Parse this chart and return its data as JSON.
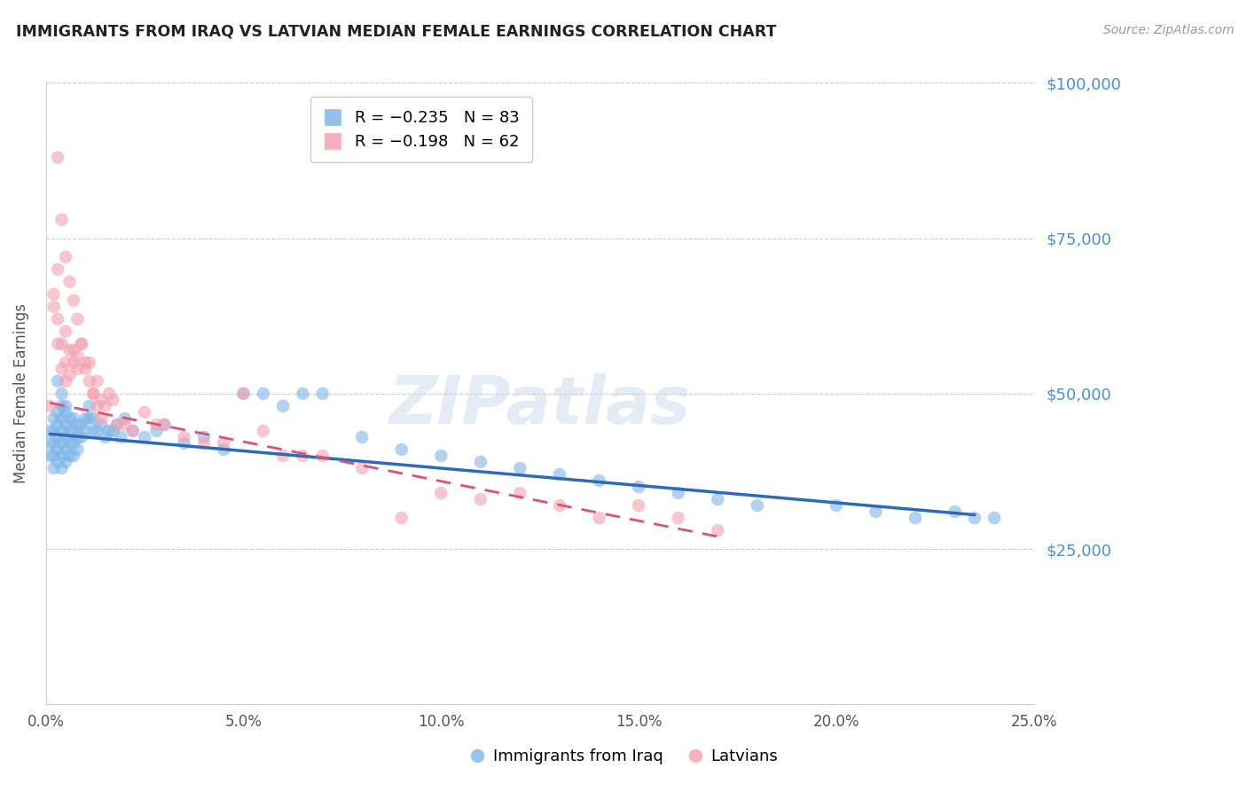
{
  "title": "IMMIGRANTS FROM IRAQ VS LATVIAN MEDIAN FEMALE EARNINGS CORRELATION CHART",
  "source": "Source: ZipAtlas.com",
  "ylabel": "Median Female Earnings",
  "y_ticks": [
    0,
    25000,
    50000,
    75000,
    100000
  ],
  "y_tick_labels": [
    "",
    "$25,000",
    "$50,000",
    "$75,000",
    "$100,000"
  ],
  "x_min": 0.0,
  "x_max": 0.25,
  "y_min": 0,
  "y_max": 100000,
  "color_iraq": "#7EB5E8",
  "color_latvians": "#F4A0B0",
  "color_iraq_line": "#2B6CB8",
  "color_latvians_line": "#E05070",
  "iraq_x": [
    0.001,
    0.001,
    0.001,
    0.002,
    0.002,
    0.002,
    0.002,
    0.002,
    0.003,
    0.003,
    0.003,
    0.003,
    0.003,
    0.004,
    0.004,
    0.004,
    0.004,
    0.004,
    0.004,
    0.005,
    0.005,
    0.005,
    0.005,
    0.005,
    0.006,
    0.006,
    0.006,
    0.006,
    0.007,
    0.007,
    0.007,
    0.007,
    0.008,
    0.008,
    0.008,
    0.009,
    0.009,
    0.01,
    0.01,
    0.011,
    0.011,
    0.012,
    0.012,
    0.013,
    0.014,
    0.015,
    0.016,
    0.017,
    0.018,
    0.019,
    0.02,
    0.022,
    0.025,
    0.028,
    0.03,
    0.035,
    0.04,
    0.045,
    0.05,
    0.055,
    0.06,
    0.065,
    0.07,
    0.08,
    0.09,
    0.1,
    0.11,
    0.12,
    0.13,
    0.14,
    0.15,
    0.16,
    0.17,
    0.18,
    0.2,
    0.21,
    0.22,
    0.23,
    0.235,
    0.24,
    0.003,
    0.004,
    0.005
  ],
  "iraq_y": [
    44000,
    42000,
    40000,
    46000,
    44000,
    42000,
    40000,
    38000,
    47000,
    45000,
    43000,
    41000,
    39000,
    48000,
    46000,
    44000,
    42000,
    40000,
    38000,
    47000,
    45000,
    43000,
    41000,
    39000,
    46000,
    44000,
    42000,
    40000,
    46000,
    44000,
    42000,
    40000,
    45000,
    43000,
    41000,
    45000,
    43000,
    46000,
    44000,
    48000,
    46000,
    46000,
    44000,
    44000,
    45000,
    43000,
    44000,
    44000,
    45000,
    43000,
    46000,
    44000,
    43000,
    44000,
    45000,
    42000,
    43000,
    41000,
    50000,
    50000,
    48000,
    50000,
    50000,
    43000,
    41000,
    40000,
    39000,
    38000,
    37000,
    36000,
    35000,
    34000,
    33000,
    32000,
    32000,
    31000,
    30000,
    31000,
    30000,
    30000,
    52000,
    50000,
    48000
  ],
  "latvians_x": [
    0.001,
    0.002,
    0.002,
    0.003,
    0.003,
    0.003,
    0.004,
    0.004,
    0.005,
    0.005,
    0.005,
    0.006,
    0.006,
    0.007,
    0.007,
    0.008,
    0.008,
    0.009,
    0.01,
    0.011,
    0.012,
    0.013,
    0.014,
    0.015,
    0.016,
    0.017,
    0.018,
    0.02,
    0.022,
    0.025,
    0.028,
    0.03,
    0.035,
    0.04,
    0.045,
    0.05,
    0.055,
    0.06,
    0.065,
    0.07,
    0.08,
    0.09,
    0.1,
    0.11,
    0.12,
    0.13,
    0.14,
    0.15,
    0.16,
    0.17,
    0.003,
    0.004,
    0.005,
    0.006,
    0.007,
    0.008,
    0.009,
    0.01,
    0.011,
    0.012,
    0.013,
    0.014
  ],
  "latvians_y": [
    48000,
    66000,
    64000,
    70000,
    62000,
    58000,
    58000,
    54000,
    60000,
    55000,
    52000,
    57000,
    53000,
    57000,
    55000,
    56000,
    54000,
    58000,
    54000,
    55000,
    50000,
    52000,
    49000,
    48000,
    50000,
    49000,
    45000,
    45000,
    44000,
    47000,
    45000,
    45000,
    43000,
    42000,
    42000,
    50000,
    44000,
    40000,
    40000,
    40000,
    38000,
    30000,
    34000,
    33000,
    34000,
    32000,
    30000,
    32000,
    30000,
    28000,
    88000,
    78000,
    72000,
    68000,
    65000,
    62000,
    58000,
    55000,
    52000,
    50000,
    48000,
    46000
  ],
  "iraq_line_x": [
    0.001,
    0.235
  ],
  "iraq_line_y": [
    43500,
    30500
  ],
  "latvian_line_x": [
    0.001,
    0.17
  ],
  "latvian_line_y": [
    48500,
    27000
  ]
}
